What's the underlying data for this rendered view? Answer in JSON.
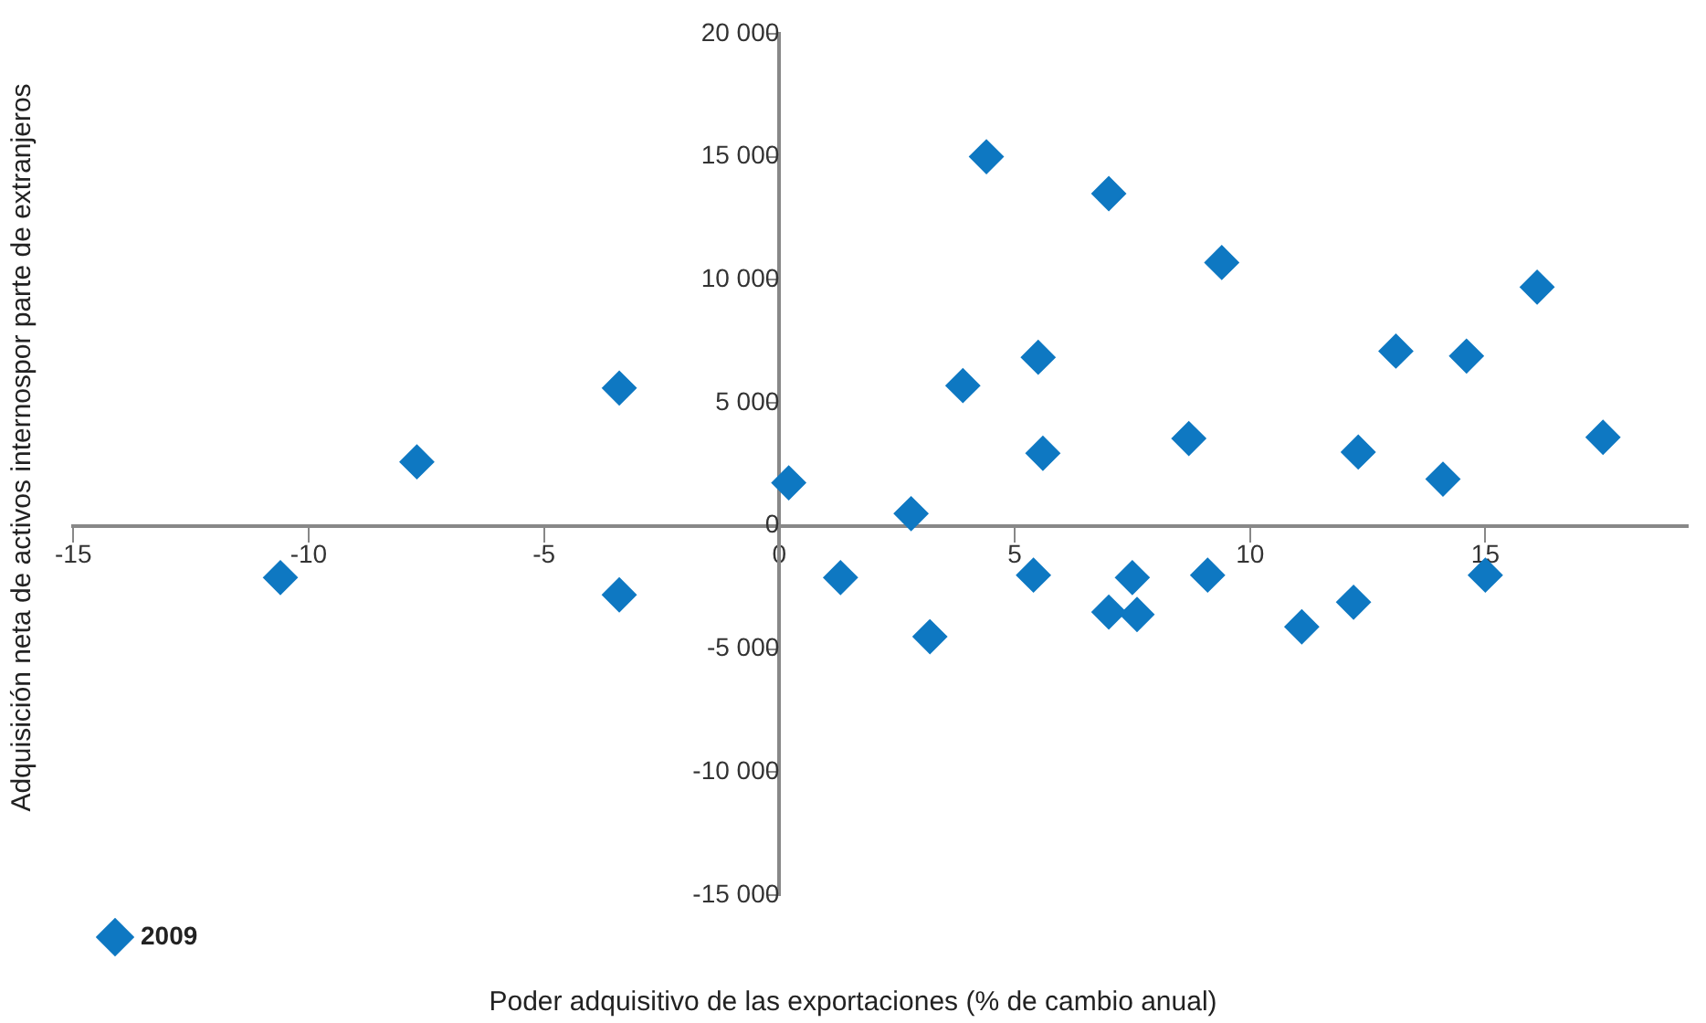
{
  "chart_data": {
    "type": "scatter",
    "xlabel": "Poder adquisitivo de las exportaciones (% de cambio anual)",
    "ylabel": "Adquisición neta de activos internospor parte de extranjeros",
    "xlim": [
      -15,
      19.3
    ],
    "xticks": [
      -15,
      -10,
      -5,
      0,
      5,
      10,
      15
    ],
    "ylim": [
      -15000,
      20000
    ],
    "yticks": [
      {
        "value": -15000,
        "label": "-15 000"
      },
      {
        "value": -10000,
        "label": "-10 000"
      },
      {
        "value": -5000,
        "label": "-5 000"
      },
      {
        "value": 0,
        "label": "0"
      },
      {
        "value": 5000,
        "label": "5 000"
      },
      {
        "value": 10000,
        "label": "10 000"
      },
      {
        "value": 15000,
        "label": "15 000"
      },
      {
        "value": 20000,
        "label": "20 000"
      }
    ],
    "grid": false,
    "legend": "bottom left",
    "marker": "diamond",
    "series": [
      {
        "name": "2009",
        "color": "#0e78c2",
        "x": [
          -10.6,
          -7.7,
          -3.4,
          -3.4,
          0.2,
          1.3,
          2.8,
          3.2,
          3.9,
          4.4,
          5.4,
          5.5,
          5.6,
          7.0,
          7.0,
          7.5,
          7.6,
          8.7,
          9.1,
          9.4,
          11.1,
          12.2,
          12.3,
          13.1,
          14.1,
          14.6,
          15.0,
          16.1,
          17.5
        ],
        "values": [
          -2100,
          2600,
          5600,
          -2800,
          1750,
          -2100,
          500,
          -4500,
          5700,
          15000,
          -2000,
          6850,
          2950,
          13500,
          -3500,
          -2100,
          -3600,
          3550,
          -2000,
          10700,
          -4100,
          -3100,
          3000,
          7100,
          1900,
          6900,
          -2000,
          9700,
          3600
        ]
      }
    ]
  }
}
